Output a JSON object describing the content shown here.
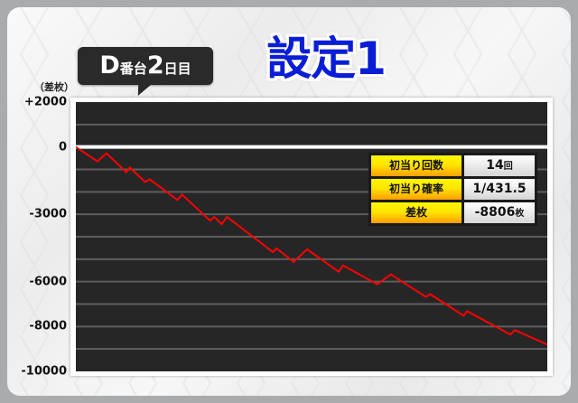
{
  "header": {
    "machine_label": "D",
    "machine_suffix": "番台",
    "day_number": "2",
    "day_suffix": "日目",
    "setting_title": "設定1"
  },
  "stats": {
    "rows": [
      {
        "label": "初当り回数",
        "value": "14",
        "unit": "回"
      },
      {
        "label": "初当り確率",
        "value": "1/431.5",
        "unit": ""
      },
      {
        "label": "差枚",
        "value": "-8806",
        "unit": "枚"
      }
    ]
  },
  "chart_data": {
    "type": "line",
    "ylabel": "（差枚）",
    "ylim": [
      -10000,
      2000
    ],
    "xlim": [
      0,
      6041
    ],
    "grid": true,
    "grid_step": 1000,
    "ytick_labels": [
      {
        "value": 2000,
        "label": "+2000"
      },
      {
        "value": 0,
        "label": "0"
      },
      {
        "value": -3000,
        "label": "-3000"
      },
      {
        "value": -6000,
        "label": "-6000"
      },
      {
        "value": -8000,
        "label": "-8000"
      },
      {
        "value": -10000,
        "label": "-10000"
      }
    ],
    "line_color": "#ff0000",
    "zero_line_color": "#ffffff",
    "background": "#262626",
    "x": [
      0,
      277,
      392,
      646,
      692,
      888,
      945,
      1303,
      1360,
      1718,
      1775,
      1868,
      1937,
      2525,
      2571,
      2790,
      2963,
      3366,
      3424,
      3862,
      4035,
      4485,
      4542,
      4969,
      5015,
      5568,
      5626,
      6041
    ],
    "y": [
      0,
      -640,
      -280,
      -1120,
      -920,
      -1560,
      -1440,
      -2360,
      -2120,
      -3280,
      -3120,
      -3440,
      -3120,
      -4680,
      -4520,
      -5120,
      -4560,
      -5560,
      -5280,
      -6120,
      -5680,
      -6680,
      -6560,
      -7520,
      -7320,
      -8360,
      -8160,
      -8806
    ]
  }
}
